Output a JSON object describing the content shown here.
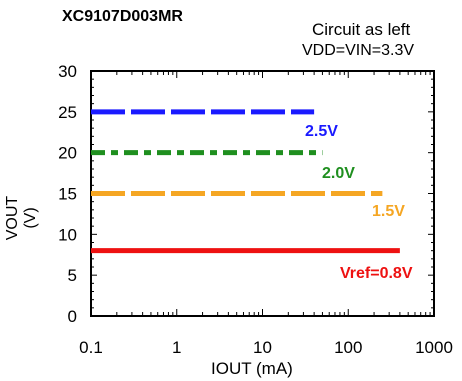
{
  "header": {
    "title": "XC9107D003MR",
    "condition_line1": "Circuit as left",
    "condition_line2": "VDD=VIN=3.3V"
  },
  "chart_data": {
    "type": "line",
    "title": "XC9107D003MR",
    "xlabel": "IOUT (mA)",
    "ylabel": "VOUT (V)",
    "x_scale": "log",
    "xlim": [
      0.1,
      1000
    ],
    "ylim": [
      0,
      30
    ],
    "x_ticks": [
      "0.1",
      "1",
      "10",
      "100",
      "1000"
    ],
    "y_ticks": [
      "0",
      "5",
      "10",
      "15",
      "20",
      "25",
      "30"
    ],
    "grid": false,
    "series": [
      {
        "name": "2.5V",
        "color": "#1a1aff",
        "style": "dashed",
        "x": [
          0.1,
          40
        ],
        "values": [
          25,
          25
        ]
      },
      {
        "name": "2.0V",
        "color": "#1f8f1f",
        "style": "dash-dot",
        "x": [
          0.1,
          50
        ],
        "values": [
          20,
          20
        ]
      },
      {
        "name": "1.5V",
        "color": "#f5a623",
        "style": "dashed",
        "x": [
          0.1,
          250
        ],
        "values": [
          15,
          15
        ]
      },
      {
        "name": "Vref=0.8V",
        "color": "#ee1111",
        "style": "solid",
        "x": [
          0.1,
          400
        ],
        "values": [
          8,
          8
        ]
      }
    ]
  }
}
